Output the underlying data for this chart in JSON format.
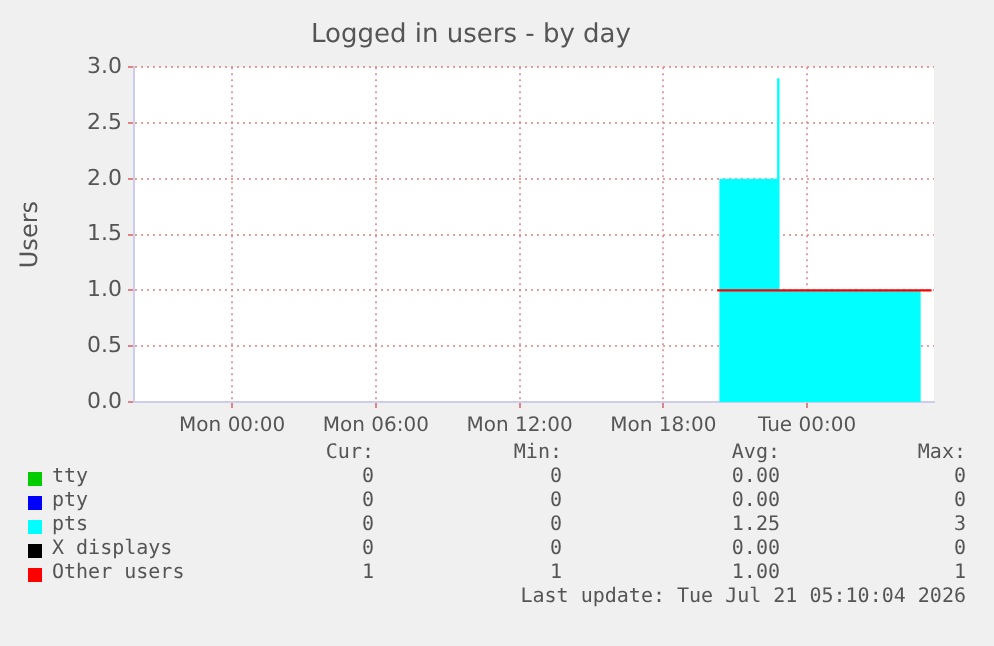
{
  "chart_data": {
    "type": "line",
    "title": "Logged in users - by day",
    "ylabel": "Users",
    "xlim": [
      "2026-07-19T19:54",
      "2026-07-21T05:18"
    ],
    "xticks": [
      {
        "value": "2026-07-20T00:00",
        "label": "Mon 00:00"
      },
      {
        "value": "2026-07-20T06:00",
        "label": "Mon 06:00"
      },
      {
        "value": "2026-07-20T12:00",
        "label": "Mon 12:00"
      },
      {
        "value": "2026-07-20T18:00",
        "label": "Mon 18:00"
      },
      {
        "value": "2026-07-21T00:00",
        "label": "Tue 00:00"
      }
    ],
    "ylim": [
      0,
      3
    ],
    "yticks": [
      {
        "value": 0,
        "label": "0.0"
      },
      {
        "value": 0.5,
        "label": "0.5"
      },
      {
        "value": 1,
        "label": "1.0"
      },
      {
        "value": 1.5,
        "label": "1.5"
      },
      {
        "value": 2,
        "label": "2.0"
      },
      {
        "value": 2.5,
        "label": "2.5"
      },
      {
        "value": 3,
        "label": "3.0"
      }
    ],
    "grid": true,
    "legend": "bottom",
    "marker": "none",
    "series": [
      {
        "name": "tty",
        "color": "#00cc00"
      },
      {
        "name": "pty",
        "color": "#0000ff"
      },
      {
        "name": "pts",
        "type": "area",
        "color": "#00ffff",
        "x": [
          "2026-07-20T20:20",
          "2026-07-20T20:20",
          "2026-07-20T22:45",
          "2026-07-20T22:45",
          "2026-07-20T22:51",
          "2026-07-20T22:51",
          "2026-07-21T04:45",
          "2026-07-21T04:45"
        ],
        "values": [
          0,
          2,
          2,
          2.9,
          2.9,
          1,
          1,
          0
        ]
      },
      {
        "name": "X displays",
        "color": "#000000"
      },
      {
        "name": "Other users",
        "color": "#ff0000",
        "x": [
          "2026-07-20T20:15",
          "2026-07-21T05:12"
        ],
        "values": [
          1,
          1
        ]
      }
    ],
    "annotations": [
      "Cur:",
      "Min:",
      "Avg:",
      "Max:",
      "0",
      "0",
      "0.00",
      "0",
      "0",
      "0",
      "0.00",
      "0",
      "0",
      "0",
      "1.25",
      "3",
      "0",
      "0",
      "0.00",
      "0",
      "1",
      "1",
      "1.00",
      "1",
      "Last update: Tue Jul 21 05:10:04 2026"
    ]
  }
}
